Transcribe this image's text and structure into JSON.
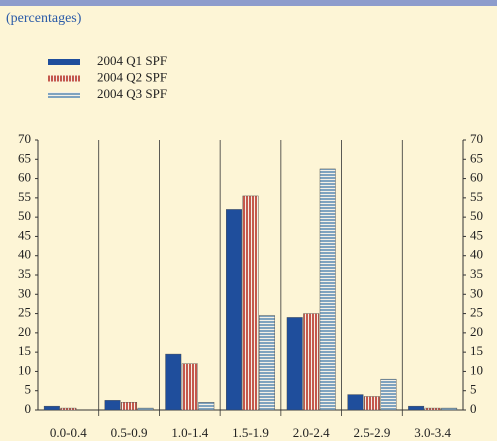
{
  "chart_data": {
    "type": "bar",
    "subtitle": "(percentages)",
    "categories": [
      "0.0-0.4",
      "0.5-0.9",
      "1.0-1.4",
      "1.5-1.9",
      "2.0-2.4",
      "2.5-2.9",
      "3.0-3.4"
    ],
    "series": [
      {
        "name": "2004 Q1 SPF",
        "color": "#1f4e9c",
        "values": [
          1,
          2.5,
          14.5,
          52,
          24,
          4,
          1
        ]
      },
      {
        "name": "2004 Q2 SPF",
        "color": "#c4584c",
        "values": [
          0.5,
          2,
          12,
          55.5,
          25,
          3.5,
          0.5
        ]
      },
      {
        "name": "2004 Q3 SPF",
        "color": "#7fa3bf",
        "values": [
          0,
          0.5,
          2,
          24.5,
          62.5,
          8,
          0.5
        ]
      }
    ],
    "ylim": [
      0,
      70
    ],
    "yticks": [
      0,
      5,
      10,
      15,
      20,
      25,
      30,
      35,
      40,
      45,
      50,
      55,
      60,
      65,
      70
    ],
    "grid": false
  }
}
